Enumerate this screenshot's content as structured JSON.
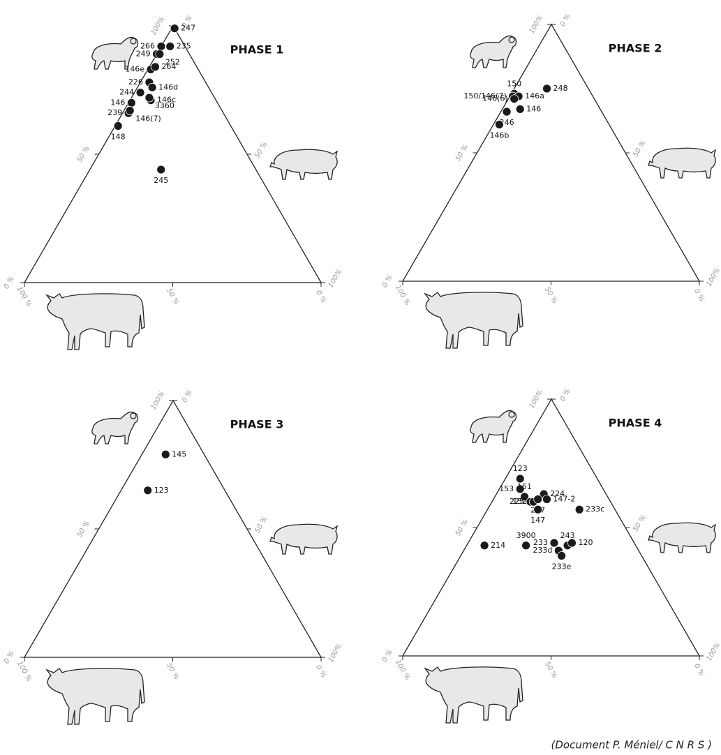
{
  "chart_data": [
    {
      "type": "ternary",
      "title": "PHASE 1",
      "axes": {
        "sheep": {
          "ticks": [
            {
              "value": 0,
              "label": "0 %"
            },
            {
              "value": 50,
              "label": "50 %"
            },
            {
              "value": 100,
              "label": "100%"
            }
          ]
        },
        "pig": {
          "ticks": [
            {
              "value": 0,
              "label": "0 %"
            },
            {
              "value": 50,
              "label": "50 %"
            },
            {
              "value": 100,
              "label": "100%"
            }
          ]
        },
        "cattle": {
          "ticks": [
            {
              "value": 0,
              "label": "0 %"
            },
            {
              "value": 50,
              "label": "50 %"
            },
            {
              "value": 100,
              "label": "100 %"
            }
          ]
        }
      },
      "points": {
        "labels": [
          "247",
          "235",
          "266",
          "249",
          "252",
          "146e",
          "264",
          "226",
          "146d",
          "244",
          "146c",
          "146",
          "3360",
          "239",
          "146(7)",
          "148",
          "245"
        ],
        "sheep": [
          99,
          92,
          92,
          89,
          89,
          83,
          84,
          78,
          76,
          74,
          71,
          70,
          72,
          66,
          67,
          61,
          44
        ],
        "pig": [
          1,
          3,
          0,
          0,
          1,
          1,
          2,
          3,
          5,
          2,
          7,
          1,
          6,
          2,
          2,
          1,
          24
        ],
        "cattle": [
          0,
          5,
          8,
          11,
          10,
          16,
          14,
          19,
          19,
          24,
          22,
          29,
          22,
          32,
          31,
          38,
          32
        ]
      }
    },
    {
      "type": "ternary",
      "title": "PHASE 2",
      "axes": {
        "sheep": {
          "ticks": [
            {
              "value": 0,
              "label": "0 %"
            },
            {
              "value": 50,
              "label": "50 %"
            },
            {
              "value": 100,
              "label": "100%"
            }
          ]
        },
        "pig": {
          "ticks": [
            {
              "value": 0,
              "label": "0 %"
            },
            {
              "value": 50,
              "label": "50 %"
            },
            {
              "value": 100,
              "label": "100%"
            }
          ]
        },
        "cattle": {
          "ticks": [
            {
              "value": 0,
              "label": "0 %"
            },
            {
              "value": 50,
              "label": "50 %"
            },
            {
              "value": 100,
              "label": "100 %"
            }
          ]
        }
      },
      "points": {
        "labels": [
          "248",
          "150",
          "150/146(7)",
          "146a",
          "146(6)",
          "146",
          "246",
          "146b"
        ],
        "sheep": [
          75,
          73,
          72,
          72,
          71,
          67,
          66,
          61
        ],
        "pig": [
          11,
          1,
          1,
          3,
          2,
          6,
          2,
          2
        ],
        "cattle": [
          14,
          26,
          27,
          25,
          27,
          27,
          32,
          37
        ]
      }
    },
    {
      "type": "ternary",
      "title": "PHASE 3",
      "axes": {
        "sheep": {
          "ticks": [
            {
              "value": 0,
              "label": "0 %"
            },
            {
              "value": 50,
              "label": "50 %"
            },
            {
              "value": 100,
              "label": "100%"
            }
          ]
        },
        "pig": {
          "ticks": [
            {
              "value": 0,
              "label": "0 %"
            },
            {
              "value": 50,
              "label": "50 %"
            },
            {
              "value": 100,
              "label": "100%"
            }
          ]
        },
        "cattle": {
          "ticks": [
            {
              "value": 0,
              "label": "0 %"
            },
            {
              "value": 50,
              "label": "50 %"
            },
            {
              "value": 100,
              "label": "100 %"
            }
          ]
        }
      },
      "points": {
        "labels": [
          "145",
          "123"
        ],
        "sheep": [
          79,
          65
        ],
        "pig": [
          8,
          9
        ],
        "cattle": [
          13,
          26
        ]
      }
    },
    {
      "type": "ternary",
      "title": "PHASE 4",
      "axes": {
        "sheep": {
          "ticks": [
            {
              "value": 0,
              "label": "0 %"
            },
            {
              "value": 50,
              "label": "50 %"
            },
            {
              "value": 100,
              "label": "100%"
            }
          ]
        },
        "pig": {
          "ticks": [
            {
              "value": 0,
              "label": "0 %"
            },
            {
              "value": 50,
              "label": "50 %"
            },
            {
              "value": 100,
              "label": "100%"
            }
          ]
        },
        "cattle": {
          "ticks": [
            {
              "value": 0,
              "label": "0 %"
            },
            {
              "value": 50,
              "label": "50 %"
            },
            {
              "value": 100,
              "label": "100 %"
            }
          ]
        }
      },
      "points": {
        "labels": [
          "123",
          "153",
          "151",
          "224",
          "225",
          "147-2",
          "152",
          "237",
          "147",
          "233c",
          "3900",
          "214",
          "233",
          "243",
          "120",
          "233d",
          "233e"
        ],
        "sheep": [
          69,
          65,
          62,
          63,
          60,
          61,
          60,
          61,
          57,
          57,
          43,
          43,
          44,
          43,
          44,
          41,
          39
        ],
        "pig": [
          5,
          7,
          10,
          16,
          13,
          18,
          14,
          15,
          17,
          31,
          20,
          6,
          29,
          34,
          35,
          32,
          34
        ],
        "cattle": [
          26,
          28,
          28,
          21,
          27,
          21,
          26,
          24,
          26,
          12,
          37,
          51,
          27,
          23,
          21,
          27,
          27
        ]
      }
    }
  ],
  "caption": "(Document P. Méniel/ C N R S )"
}
